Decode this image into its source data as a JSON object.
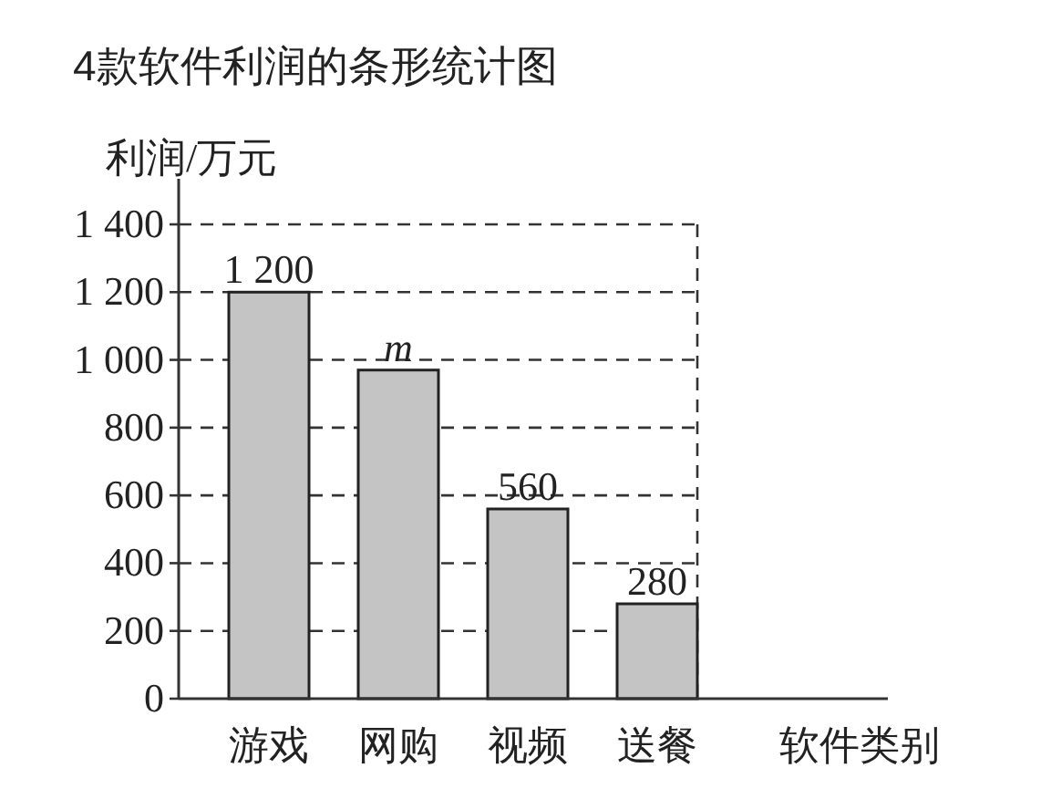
{
  "chart_data": {
    "type": "bar",
    "title": "4款软件利润的条形统计图",
    "ylabel": "利润/万元",
    "xlabel": "软件类别",
    "categories": [
      "游戏",
      "网购",
      "视频",
      "送餐"
    ],
    "values": [
      1200,
      970,
      560,
      280
    ],
    "value_labels": [
      "1 200",
      "m",
      "560",
      "280"
    ],
    "color": "#c4c4c4",
    "ylim": [
      0,
      1400
    ],
    "yticks": [
      0,
      200,
      400,
      600,
      800,
      {
        "value": 1000,
        "label": "1 000"
      },
      {
        "value": 1200,
        "label": "1 200"
      },
      {
        "value": 1400,
        "label": "1 400"
      }
    ],
    "grid": "y"
  }
}
